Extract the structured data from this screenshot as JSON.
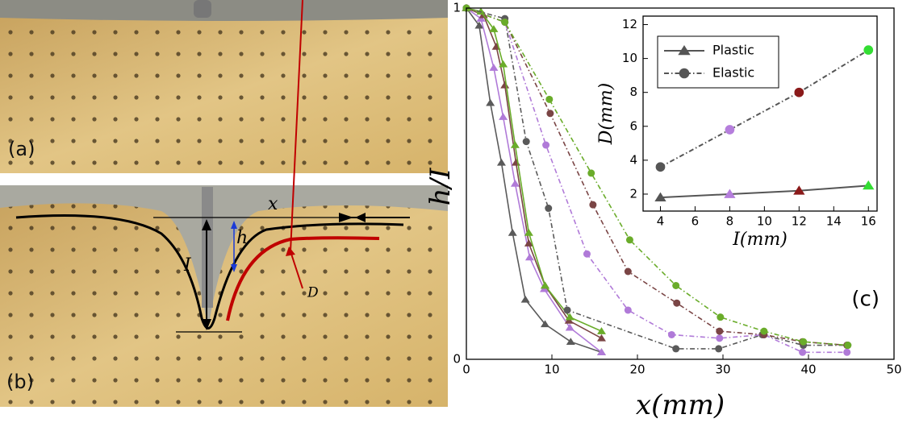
{
  "photos": {
    "a": {
      "label": "(a)"
    },
    "b": {
      "label": "(b)",
      "annotations": {
        "x": "x",
        "h": "h",
        "I": "I",
        "D": "D"
      }
    }
  },
  "chart_data": [
    {
      "type": "line",
      "xlabel": "x(mm)",
      "ylabel": "h/I",
      "annotation": "(c)",
      "xlim": [
        0,
        50
      ],
      "ylim": [
        0,
        1
      ],
      "xticks": [
        0,
        10,
        20,
        30,
        40,
        50
      ],
      "yticks": [
        0,
        1
      ],
      "series": [
        {
          "color": "#5a5a5a",
          "marker": "triangle",
          "linestyle": "solid",
          "x": [
            0,
            1.5,
            2.8,
            4.1,
            5.4,
            6.9,
            9.2,
            12.2,
            15.8
          ],
          "values": [
            1,
            0.95,
            0.73,
            0.56,
            0.36,
            0.17,
            0.1,
            0.05,
            0.02
          ]
        },
        {
          "color": "#b07ad8",
          "marker": "triangle",
          "linestyle": "solid",
          "x": [
            0,
            1.7,
            3.2,
            4.3,
            5.7,
            7.4,
            9.1,
            12.1,
            15.8
          ],
          "values": [
            1,
            0.97,
            0.83,
            0.69,
            0.5,
            0.29,
            0.2,
            0.09,
            0.02
          ]
        },
        {
          "color": "#7a4545",
          "marker": "triangle",
          "linestyle": "solid",
          "x": [
            0,
            2,
            3.5,
            4.5,
            5.8,
            7.3,
            9.2,
            12,
            15.8
          ],
          "values": [
            1,
            0.98,
            0.89,
            0.78,
            0.56,
            0.33,
            0.21,
            0.11,
            0.06
          ]
        },
        {
          "color": "#6aac2a",
          "marker": "triangle",
          "linestyle": "solid",
          "x": [
            0,
            1.7,
            3.2,
            4.3,
            5.7,
            7.3,
            9.2,
            12.1,
            15.8
          ],
          "values": [
            1,
            0.99,
            0.94,
            0.84,
            0.61,
            0.36,
            0.21,
            0.12,
            0.08
          ]
        },
        {
          "color": "#5a5a5a",
          "marker": "circle",
          "linestyle": "dashdot",
          "x": [
            0,
            4.5,
            7,
            9.6,
            11.8,
            24.5,
            29.5,
            34.6,
            39.4,
            44.6
          ],
          "values": [
            1,
            0.97,
            0.62,
            0.43,
            0.14,
            0.03,
            0.03,
            0.07,
            0.04,
            0.04
          ]
        },
        {
          "color": "#b07ad8",
          "marker": "circle",
          "linestyle": "dashdot",
          "x": [
            0,
            4.5,
            9.3,
            14.1,
            18.9,
            24,
            29.6,
            34.8,
            39.3,
            44.5
          ],
          "values": [
            1,
            0.96,
            0.61,
            0.3,
            0.14,
            0.07,
            0.06,
            0.07,
            0.02,
            0.02
          ]
        },
        {
          "color": "#7a4545",
          "marker": "circle",
          "linestyle": "dashdot",
          "x": [
            0,
            4.5,
            9.8,
            14.8,
            18.9,
            24.6,
            29.6,
            34.8,
            39.3,
            44.5
          ],
          "values": [
            1,
            0.96,
            0.7,
            0.44,
            0.25,
            0.16,
            0.08,
            0.07,
            0.05,
            0.04
          ]
        },
        {
          "color": "#6aac2a",
          "marker": "circle",
          "linestyle": "dashdot",
          "x": [
            0,
            4.5,
            9.7,
            14.6,
            19.1,
            24.5,
            29.7,
            34.8,
            39.4,
            44.6
          ],
          "values": [
            1,
            0.96,
            0.74,
            0.53,
            0.34,
            0.21,
            0.12,
            0.08,
            0.05,
            0.04
          ]
        }
      ]
    },
    {
      "type": "line",
      "xlabel": "I(mm)",
      "ylabel": "D(mm)",
      "xlim": [
        3,
        16.5
      ],
      "ylim": [
        1,
        12.5
      ],
      "xticks": [
        4,
        6,
        8,
        10,
        12,
        14,
        16
      ],
      "yticks": [
        2,
        4,
        6,
        8,
        10,
        12
      ],
      "legend": "upper left",
      "series": [
        {
          "name": "Plastic",
          "color": "#555555",
          "marker": "triangle",
          "linestyle": "solid",
          "x": [
            4,
            8,
            12,
            16
          ],
          "values": [
            1.8,
            2,
            2.2,
            2.5
          ],
          "point_colors": [
            "#555555",
            "#b57edc",
            "#8b1a1a",
            "#33dd33"
          ]
        },
        {
          "name": "Elastic",
          "color": "#555555",
          "marker": "circle",
          "linestyle": "dashdot",
          "x": [
            4,
            8,
            12,
            16
          ],
          "values": [
            3.6,
            5.8,
            8,
            10.5
          ],
          "point_colors": [
            "#555555",
            "#b57edc",
            "#8b1a1a",
            "#33dd33"
          ]
        }
      ]
    }
  ]
}
